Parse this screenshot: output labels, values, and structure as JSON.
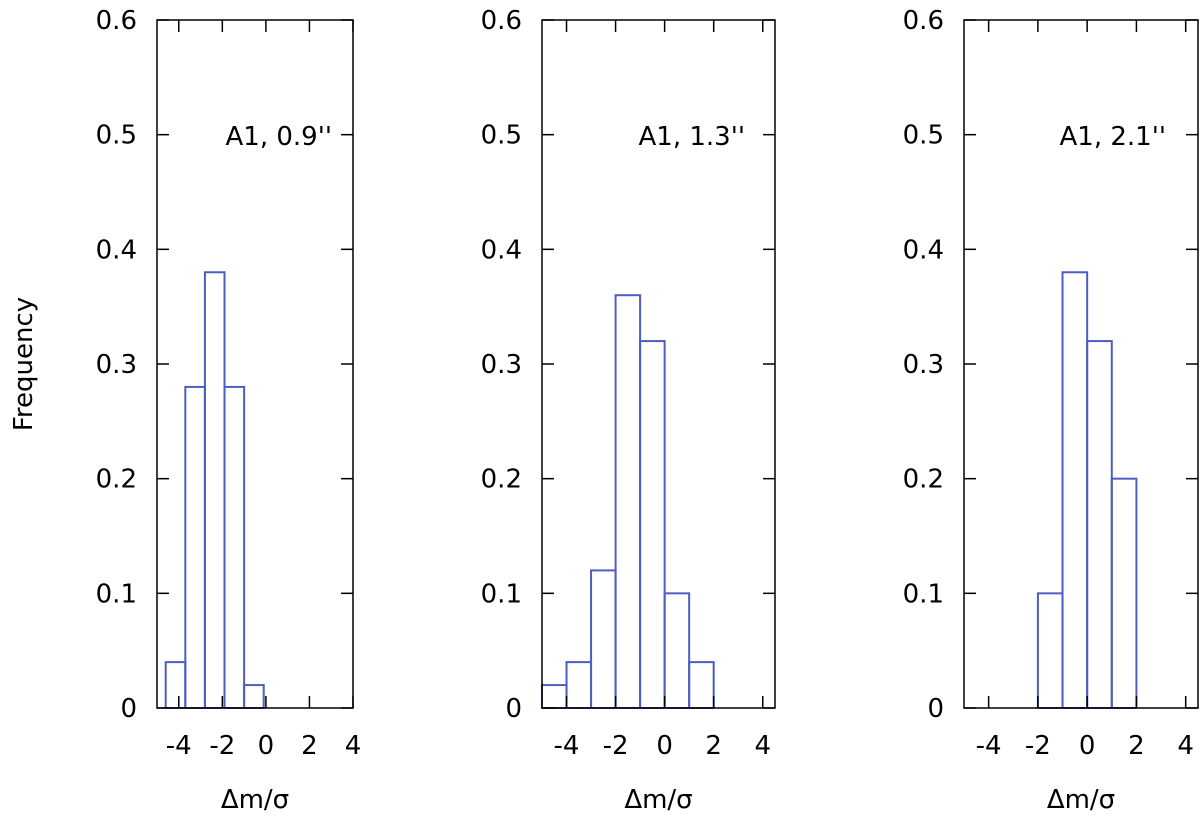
{
  "figure": {
    "ylabel": "Frequency",
    "bar_color": "#4c5ec2",
    "axis_color": "#000000"
  },
  "chart_data": [
    {
      "type": "bar",
      "title": "",
      "annotation": "A1, 0.9''",
      "xlabel": "Δm/σ",
      "ylabel": "Frequency",
      "xlim": [
        -5,
        4
      ],
      "ylim": [
        0,
        0.6
      ],
      "xticks": [
        -4,
        -2,
        0,
        2,
        4
      ],
      "yticks": [
        "0",
        "0.1",
        "0.2",
        "0.3",
        "0.4",
        "0.5",
        "0.6"
      ],
      "bin_width": 0.9,
      "bin_starts": [
        -4.6,
        -3.7,
        -2.8,
        -1.9,
        -1.0
      ],
      "values": [
        0.04,
        0.28,
        0.38,
        0.28,
        0.02
      ]
    },
    {
      "type": "bar",
      "title": "",
      "annotation": "A1, 1.3''",
      "xlabel": "Δm/σ",
      "ylabel": "Frequency",
      "xlim": [
        -5,
        4.5
      ],
      "ylim": [
        0,
        0.6
      ],
      "xticks": [
        -4,
        -2,
        0,
        2,
        4
      ],
      "yticks": [
        "0",
        "0.1",
        "0.2",
        "0.3",
        "0.4",
        "0.5",
        "0.6"
      ],
      "bin_width": 1.0,
      "bin_starts": [
        -5,
        -4,
        -3,
        -2,
        -1,
        0,
        1
      ],
      "values": [
        0.02,
        0.04,
        0.12,
        0.36,
        0.32,
        0.1,
        0.04
      ]
    },
    {
      "type": "bar",
      "title": "",
      "annotation": "A1, 2.1''",
      "xlabel": "Δm/σ",
      "ylabel": "Frequency",
      "xlim": [
        -5,
        4.5
      ],
      "ylim": [
        0,
        0.6
      ],
      "xticks": [
        -4,
        -2,
        0,
        2,
        4
      ],
      "yticks": [
        "0",
        "0.1",
        "0.2",
        "0.3",
        "0.4",
        "0.5",
        "0.6"
      ],
      "bin_width": 1.0,
      "bin_starts": [
        -2,
        -1,
        0,
        1
      ],
      "values": [
        0.1,
        0.38,
        0.32,
        0.2
      ]
    }
  ]
}
